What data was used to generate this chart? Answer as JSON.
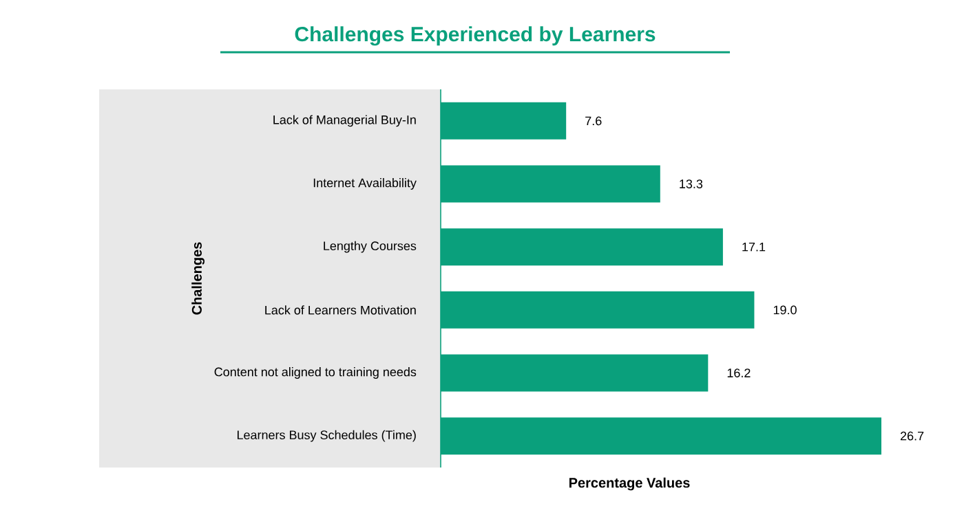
{
  "chart_data": {
    "type": "bar",
    "orientation": "horizontal",
    "title": "Challenges Experienced by Learners",
    "xlabel": "Percentage Values",
    "ylabel": "Challenges",
    "categories": [
      "Lack of Managerial Buy-In",
      "Internet Availability",
      "Lengthy Courses",
      "Lack of Learners Motivation",
      "Content not aligned to training needs",
      "Learners Busy Schedules (Time)"
    ],
    "values": [
      7.6,
      13.3,
      17.1,
      19.0,
      16.2,
      26.7
    ],
    "value_labels": [
      "7.6",
      "13.3",
      "17.1",
      "19.0",
      "16.2",
      "26.7"
    ],
    "color": "#0aa07c"
  }
}
